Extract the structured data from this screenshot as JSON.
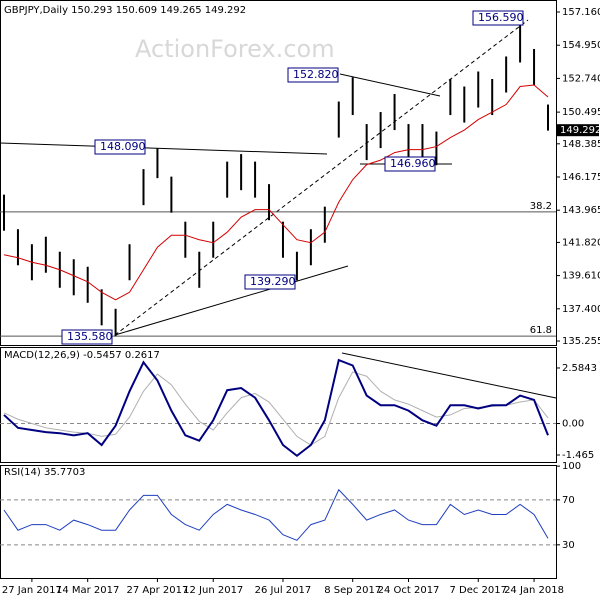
{
  "chart_data": {
    "type": "ohlc",
    "title": "GBPJPY,Daily  150.293 150.609 149.265 149.292",
    "watermark": "ActionForex.com",
    "categories": [
      null,
      null,
      "27 Jan 2017",
      null,
      null,
      null,
      "14 Mar 2017",
      null,
      null,
      null,
      null,
      "27 Apr 2017",
      null,
      null,
      null,
      "12 Jun 2017",
      null,
      null,
      null,
      null,
      "26 Jul 2017",
      null,
      null,
      null,
      null,
      "8 Sep 2017",
      null,
      null,
      null,
      "24 Oct 2017",
      null,
      null,
      null,
      null,
      "7 Dec 2017",
      null,
      null,
      null,
      "24 Jan 2018",
      null
    ],
    "high": [
      145.0,
      142.7,
      141.7,
      142.2,
      141.2,
      140.7,
      140.2,
      138.7,
      137.4,
      141.7,
      146.7,
      148.09,
      146.2,
      143.2,
      141.2,
      143.2,
      147.2,
      147.7,
      147.2,
      145.7,
      143.2,
      141.2,
      142.7,
      144.2,
      151.2,
      152.82,
      149.7,
      150.5,
      151.7,
      149.7,
      149.7,
      149.2,
      152.7,
      152.2,
      153.2,
      152.7,
      154.2,
      156.59,
      154.7,
      151.0
    ],
    "low": [
      142.6,
      140.3,
      139.3,
      139.8,
      138.8,
      138.3,
      137.8,
      136.3,
      135.58,
      139.3,
      144.3,
      146.1,
      143.8,
      140.8,
      138.8,
      140.8,
      144.8,
      145.3,
      144.8,
      143.3,
      140.8,
      139.29,
      140.3,
      141.8,
      148.8,
      150.3,
      147.3,
      148.1,
      149.3,
      147.3,
      147.3,
      146.96,
      150.3,
      149.8,
      150.8,
      150.3,
      151.8,
      153.8,
      152.3,
      149.265
    ],
    "color": "#000000",
    "ma": {
      "color": "#d40000",
      "values": [
        141.0,
        140.8,
        140.5,
        140.3,
        140.0,
        139.6,
        139.2,
        138.5,
        138.0,
        138.5,
        140.0,
        141.5,
        142.3,
        142.3,
        142.0,
        141.8,
        142.5,
        143.5,
        144.0,
        144.0,
        143.0,
        142.0,
        141.8,
        142.5,
        144.5,
        146.0,
        147.0,
        147.3,
        147.8,
        148.0,
        148.0,
        148.2,
        148.8,
        149.3,
        150.0,
        150.5,
        151.0,
        152.2,
        152.3,
        151.5
      ]
    },
    "ylim": [
      134.99,
      157.96
    ],
    "yticks": [
      {
        "value": 157.16,
        "label": "157.160"
      },
      {
        "value": 154.95,
        "label": "154.950"
      },
      {
        "value": 152.74,
        "label": "152.740"
      },
      150.495,
      148.385,
      146.175,
      143.965,
      {
        "value": 141.82,
        "label": "141.820"
      },
      {
        "value": 139.61,
        "label": "139.610"
      },
      {
        "value": 137.4,
        "label": "137.400"
      },
      135.255
    ],
    "last_price": 149.292,
    "annotations": [
      "156.590",
      "152.820",
      "148.090",
      "146.960",
      "139.290",
      "135.580"
    ],
    "fib_levels": [
      {
        "value": 143.85,
        "label": "38.2"
      },
      {
        "value": 135.58,
        "label": "61.8"
      }
    ],
    "macd": {
      "title": "MACD(12,26,9) -0.5457 0.2617",
      "ylim": [
        -1.79,
        3.56
      ],
      "yticks": [
        2.5843,
        {
          "value": 0,
          "label": "0.00"
        },
        -1.465
      ],
      "series": [
        {
          "color": "#000080",
          "values": [
            0.4,
            -0.2,
            -0.3,
            -0.4,
            -0.45,
            -0.55,
            -0.45,
            -1.0,
            -0.1,
            1.5,
            2.85,
            2.0,
            0.6,
            -0.55,
            -0.8,
            0.15,
            1.55,
            1.65,
            1.2,
            0.15,
            -1.0,
            -1.5,
            -1.0,
            0.15,
            2.95,
            2.7,
            1.3,
            0.85,
            0.85,
            0.6,
            0.15,
            -0.1,
            0.85,
            0.85,
            0.7,
            0.85,
            0.85,
            1.3,
            1.1,
            -0.5457
          ]
        },
        {
          "color": "#b0b0b0",
          "values": [
            0.5,
            0.2,
            0,
            -0.2,
            -0.3,
            -0.4,
            -0.45,
            -0.6,
            -0.5,
            0.3,
            1.5,
            2.3,
            1.8,
            0.9,
            0.1,
            -0.3,
            0.5,
            1.2,
            1.4,
            1.0,
            0.2,
            -0.6,
            -1.0,
            -0.6,
            1.2,
            2.4,
            2.2,
            1.5,
            1.1,
            0.9,
            0.6,
            0.3,
            0.4,
            0.7,
            0.75,
            0.8,
            0.85,
            1.0,
            1.1,
            0.2617
          ]
        }
      ]
    },
    "rsi": {
      "title": "RSI(14) 35.7703",
      "ylim": [
        0.5,
        101
      ],
      "yticks": [
        100,
        70,
        30
      ],
      "color": "#1f3fbf",
      "values": [
        61,
        43,
        48,
        48,
        43,
        52,
        48,
        43,
        43,
        61,
        74,
        74,
        57,
        48,
        43,
        57,
        66,
        61,
        57,
        52,
        39,
        34,
        48,
        52,
        79,
        66,
        52,
        57,
        61,
        52,
        48,
        48,
        66,
        57,
        61,
        57,
        57,
        66,
        57,
        35.7703
      ]
    }
  }
}
